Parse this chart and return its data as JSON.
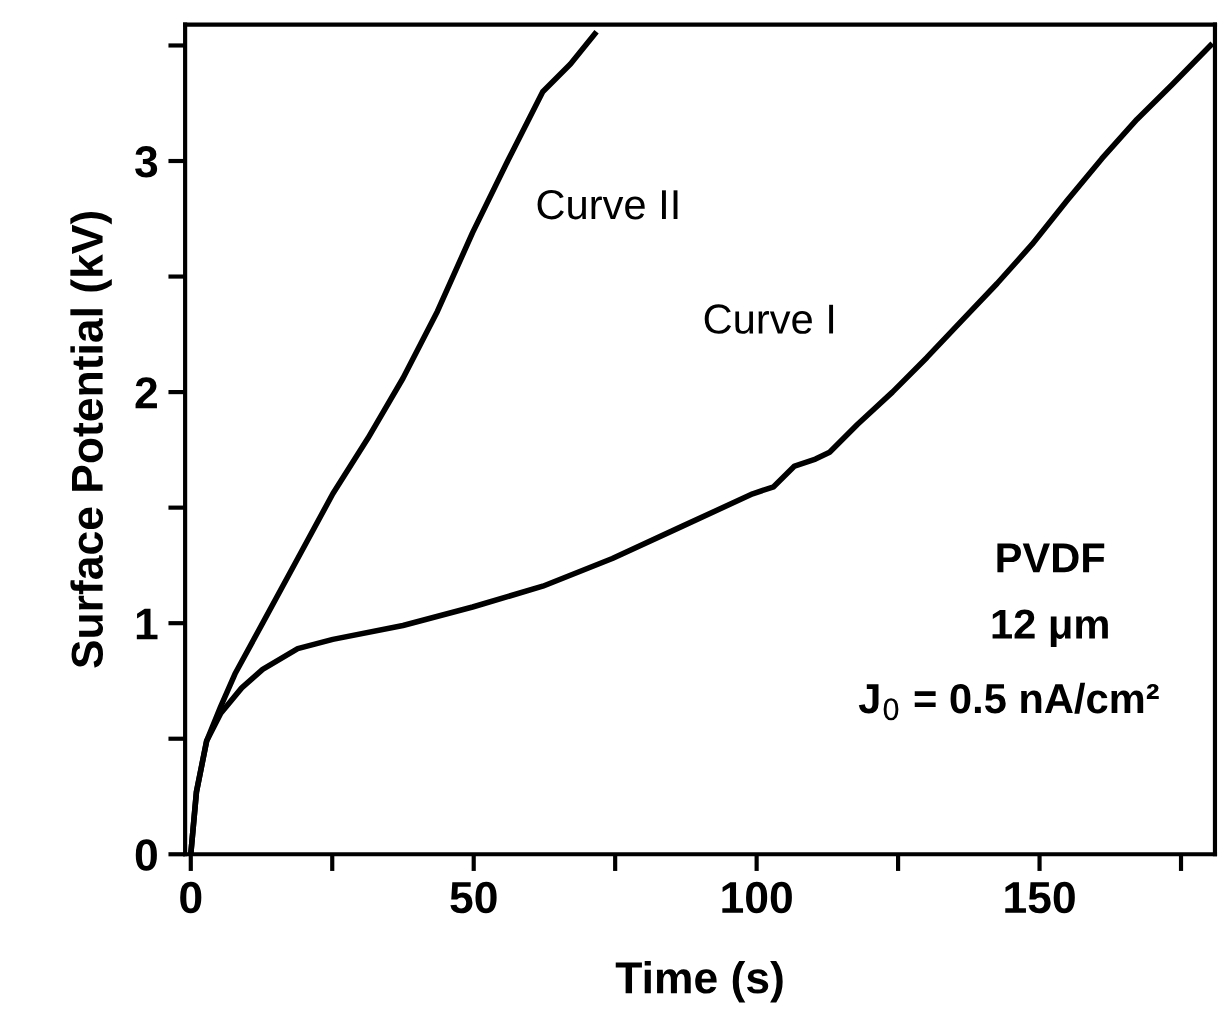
{
  "chart_data": {
    "type": "line",
    "xlabel": "Time (s)",
    "ylabel": "Surface Potential (kV)",
    "xlim": [
      -1,
      181
    ],
    "ylim": [
      0,
      3.59
    ],
    "xticks": [
      0,
      {
        "value": 25,
        "label": null
      },
      50,
      {
        "value": 75,
        "label": null
      },
      100,
      {
        "value": 125,
        "label": null
      },
      150,
      {
        "value": 175,
        "label": null
      }
    ],
    "yticks": [
      0,
      {
        "value": 0.5,
        "label": null
      },
      1,
      {
        "value": 1.5,
        "label": null
      },
      2,
      {
        "value": 2.5,
        "label": null
      },
      3,
      {
        "value": 3.5,
        "label": null
      }
    ],
    "grid": false,
    "legend": false,
    "marker": "none",
    "line_style": "solid",
    "series": [
      {
        "name": "Curve II",
        "color": "#000000",
        "x": [
          0,
          1,
          2.8,
          5.3,
          7.8,
          12.7,
          18.9,
          25.1,
          31.3,
          37.5,
          43.6,
          49.8,
          56,
          62.2,
          67.1,
          71.4
        ],
        "values": [
          0,
          0.27,
          0.49,
          0.64,
          0.78,
          1.0,
          1.28,
          1.56,
          1.8,
          2.06,
          2.35,
          2.69,
          3.0,
          3.3,
          3.42,
          3.55
        ]
      },
      {
        "name": "Curve I",
        "color": "#000000",
        "x": [
          0,
          1,
          2.8,
          5.3,
          9,
          12.7,
          18.9,
          25.1,
          37.5,
          49.8,
          62.2,
          74.5,
          86.9,
          99.3,
          103,
          106.7,
          110.4,
          112.9,
          117.8,
          124,
          130.1,
          136.3,
          142.5,
          148.7,
          154.9,
          161,
          167.2,
          173.4,
          180.2
        ],
        "values": [
          0,
          0.27,
          0.49,
          0.61,
          0.72,
          0.8,
          0.89,
          0.93,
          0.99,
          1.07,
          1.16,
          1.28,
          1.42,
          1.56,
          1.59,
          1.68,
          1.71,
          1.74,
          1.86,
          2.0,
          2.15,
          2.31,
          2.47,
          2.64,
          2.83,
          3.01,
          3.18,
          3.33,
          3.5
        ]
      }
    ],
    "annotations": [
      "PVDF",
      "12 μm",
      "J$_{0}$ = 0.5 nA/cm²"
    ]
  }
}
